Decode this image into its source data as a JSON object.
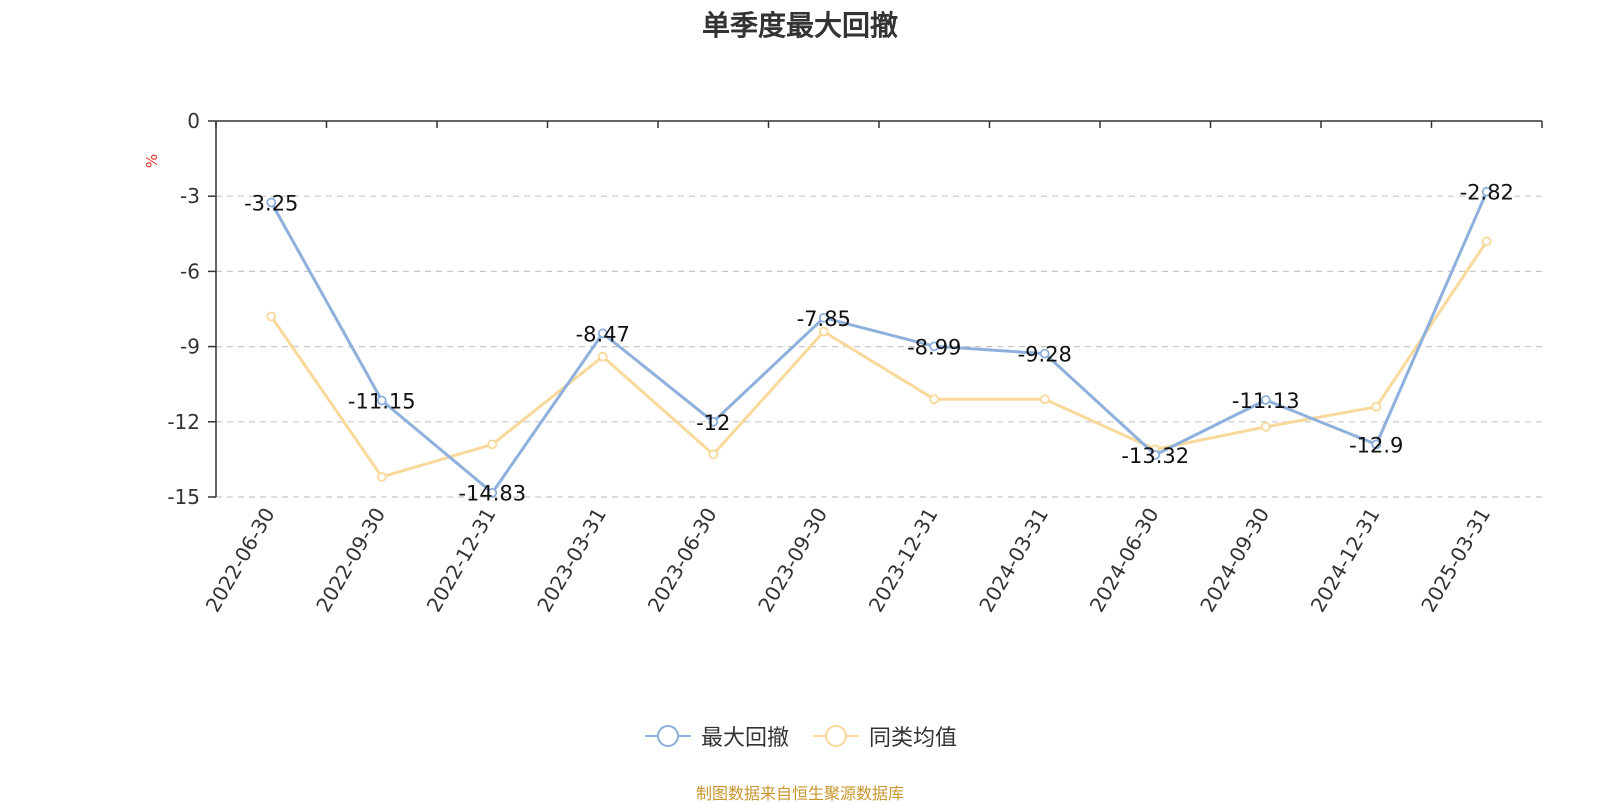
{
  "chart_data": {
    "type": "line",
    "title": "单季度最大回撤",
    "ylabel": "%",
    "ylim": [
      -15,
      0
    ],
    "yticks": [
      0,
      -3,
      -6,
      -9,
      -12,
      -15
    ],
    "grid": true,
    "legend_position": "bottom",
    "categories": [
      "2022-06-30",
      "2022-09-30",
      "2022-12-31",
      "2023-03-31",
      "2023-06-30",
      "2023-09-30",
      "2023-12-31",
      "2024-03-31",
      "2024-06-30",
      "2024-09-30",
      "2024-12-31",
      "2025-03-31"
    ],
    "series": [
      {
        "name": "最大回撤",
        "color": "#8eb0dc",
        "labeled": true,
        "values": [
          -3.25,
          -11.15,
          -14.83,
          -8.47,
          -12,
          -7.85,
          -8.99,
          -9.28,
          -13.32,
          -11.13,
          -12.9,
          -2.82
        ]
      },
      {
        "name": "同类均值",
        "color": "#f9d99b",
        "labeled": false,
        "values": [
          -7.8,
          -14.2,
          -12.9,
          -9.4,
          -13.3,
          -8.4,
          -11.1,
          -11.1,
          -13.1,
          -12.2,
          -11.4,
          -4.8
        ]
      }
    ]
  },
  "source_note": "制图数据来自恒生聚源数据库"
}
